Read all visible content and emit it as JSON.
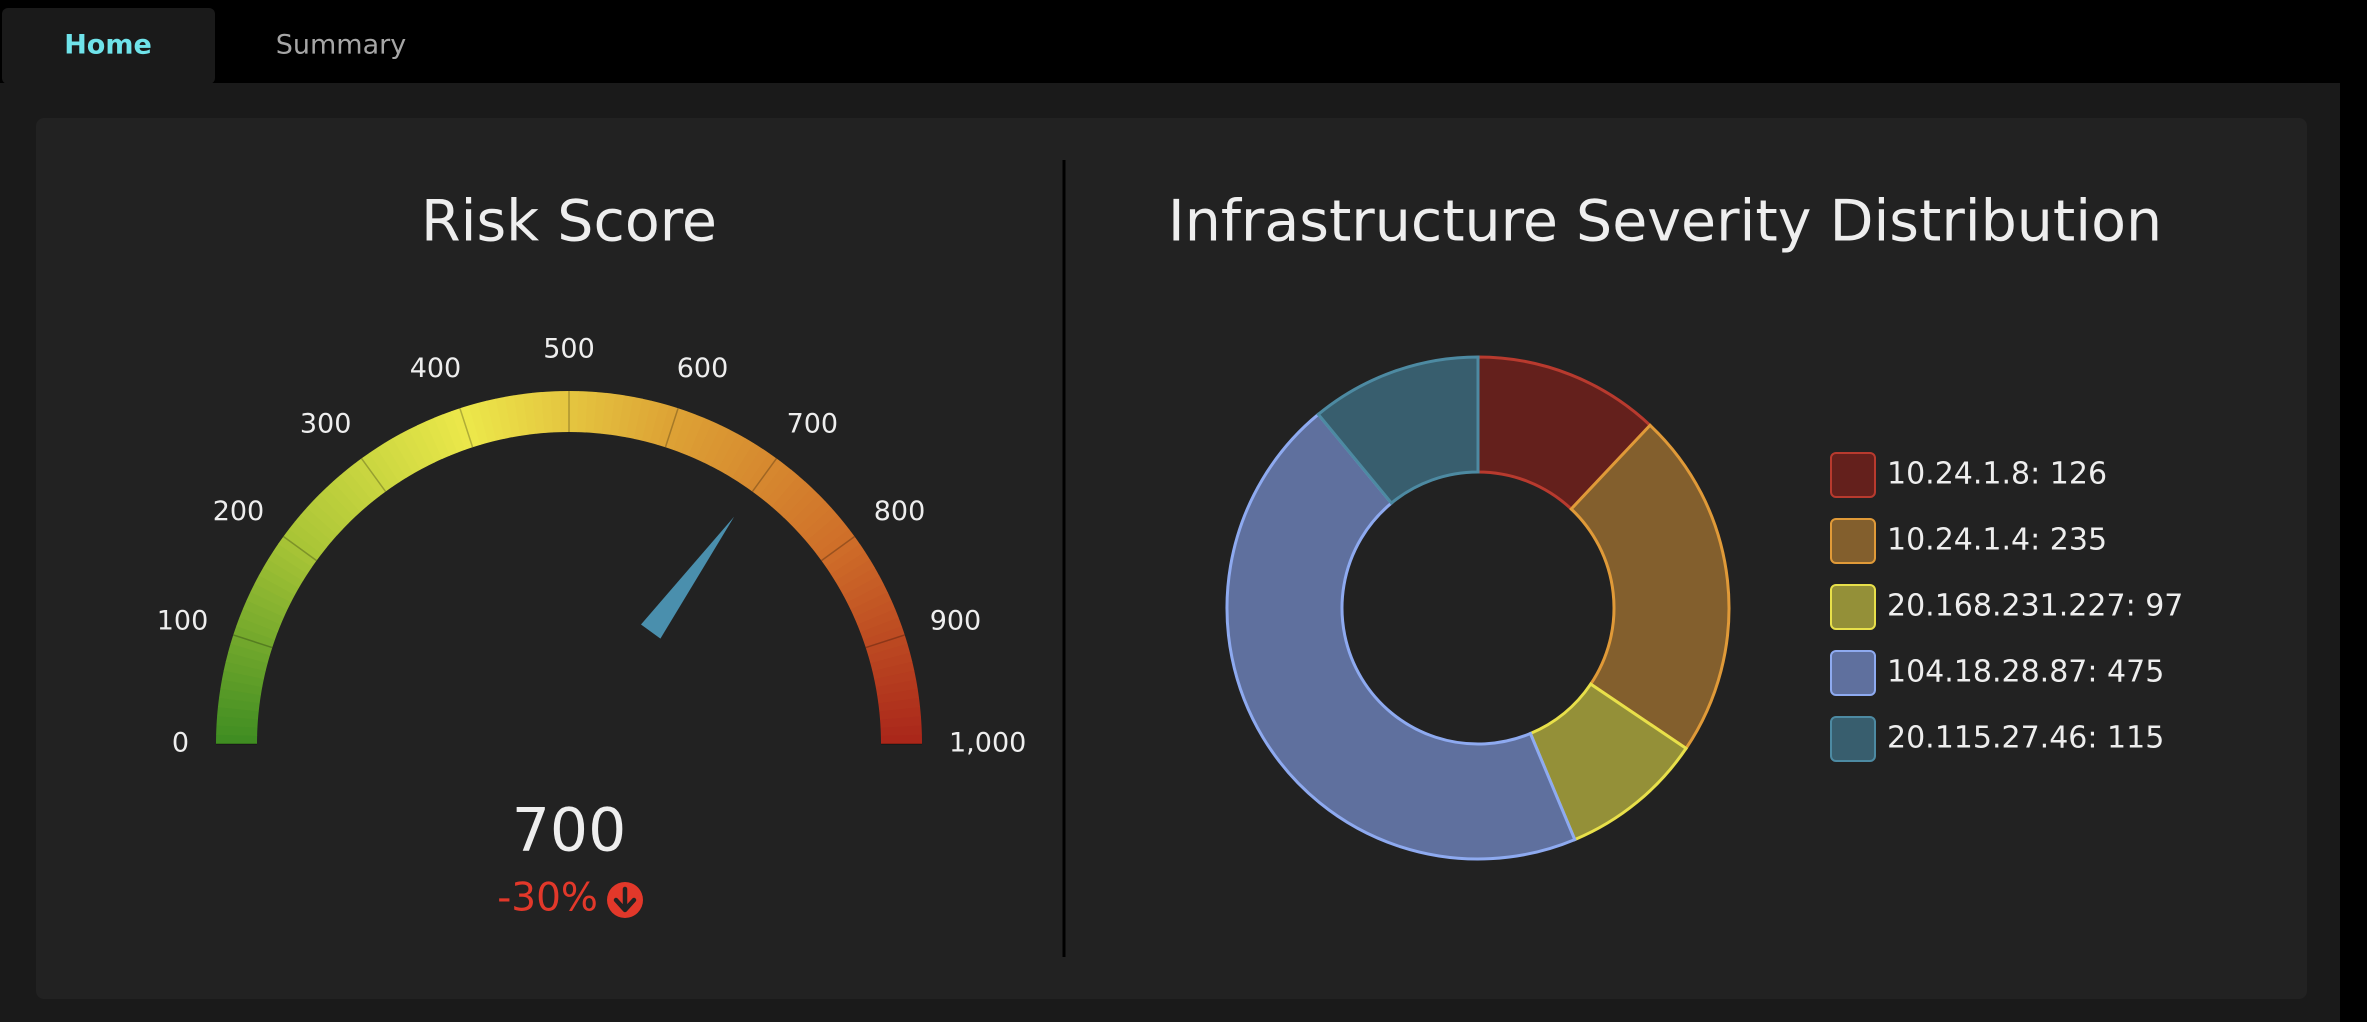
{
  "tabs": [
    "Home",
    "Summary"
  ],
  "chart_data": [
    {
      "type": "gauge",
      "title": "Risk Score",
      "value": 700,
      "delta": {
        "value": -30,
        "label": "-30%"
      },
      "ylim": [
        0,
        1000
      ],
      "yticks": [
        0,
        100,
        200,
        300,
        400,
        500,
        600,
        700,
        800,
        900,
        {
          "value": 1000,
          "label": "1,000"
        }
      ],
      "colors": [
        "#3e8c22",
        "#a8c436",
        "#ece84a",
        "#dda235",
        "#cf6e29",
        "#a9251a"
      ],
      "needle_color": "#4a8fad",
      "delta_color": "#e2382a"
    },
    {
      "type": "donut",
      "title": "Infrastructure Severity Distribution",
      "values": [
        126,
        235,
        97,
        475,
        115
      ],
      "value_labels": [
        "10.24.1.8: 126",
        "10.24.1.4: 235",
        "20.168.231.227: 97",
        "104.18.28.87: 475",
        "20.115.27.46: 115"
      ],
      "colors": [
        "#64201c",
        "#835f2d",
        "#949038",
        "#5f709e",
        "#385e6e"
      ],
      "border_colors": [
        "#b83a2e",
        "#e09a38",
        "#e8e04a",
        "#8eaaf0",
        "#4d8aa2"
      ]
    }
  ]
}
